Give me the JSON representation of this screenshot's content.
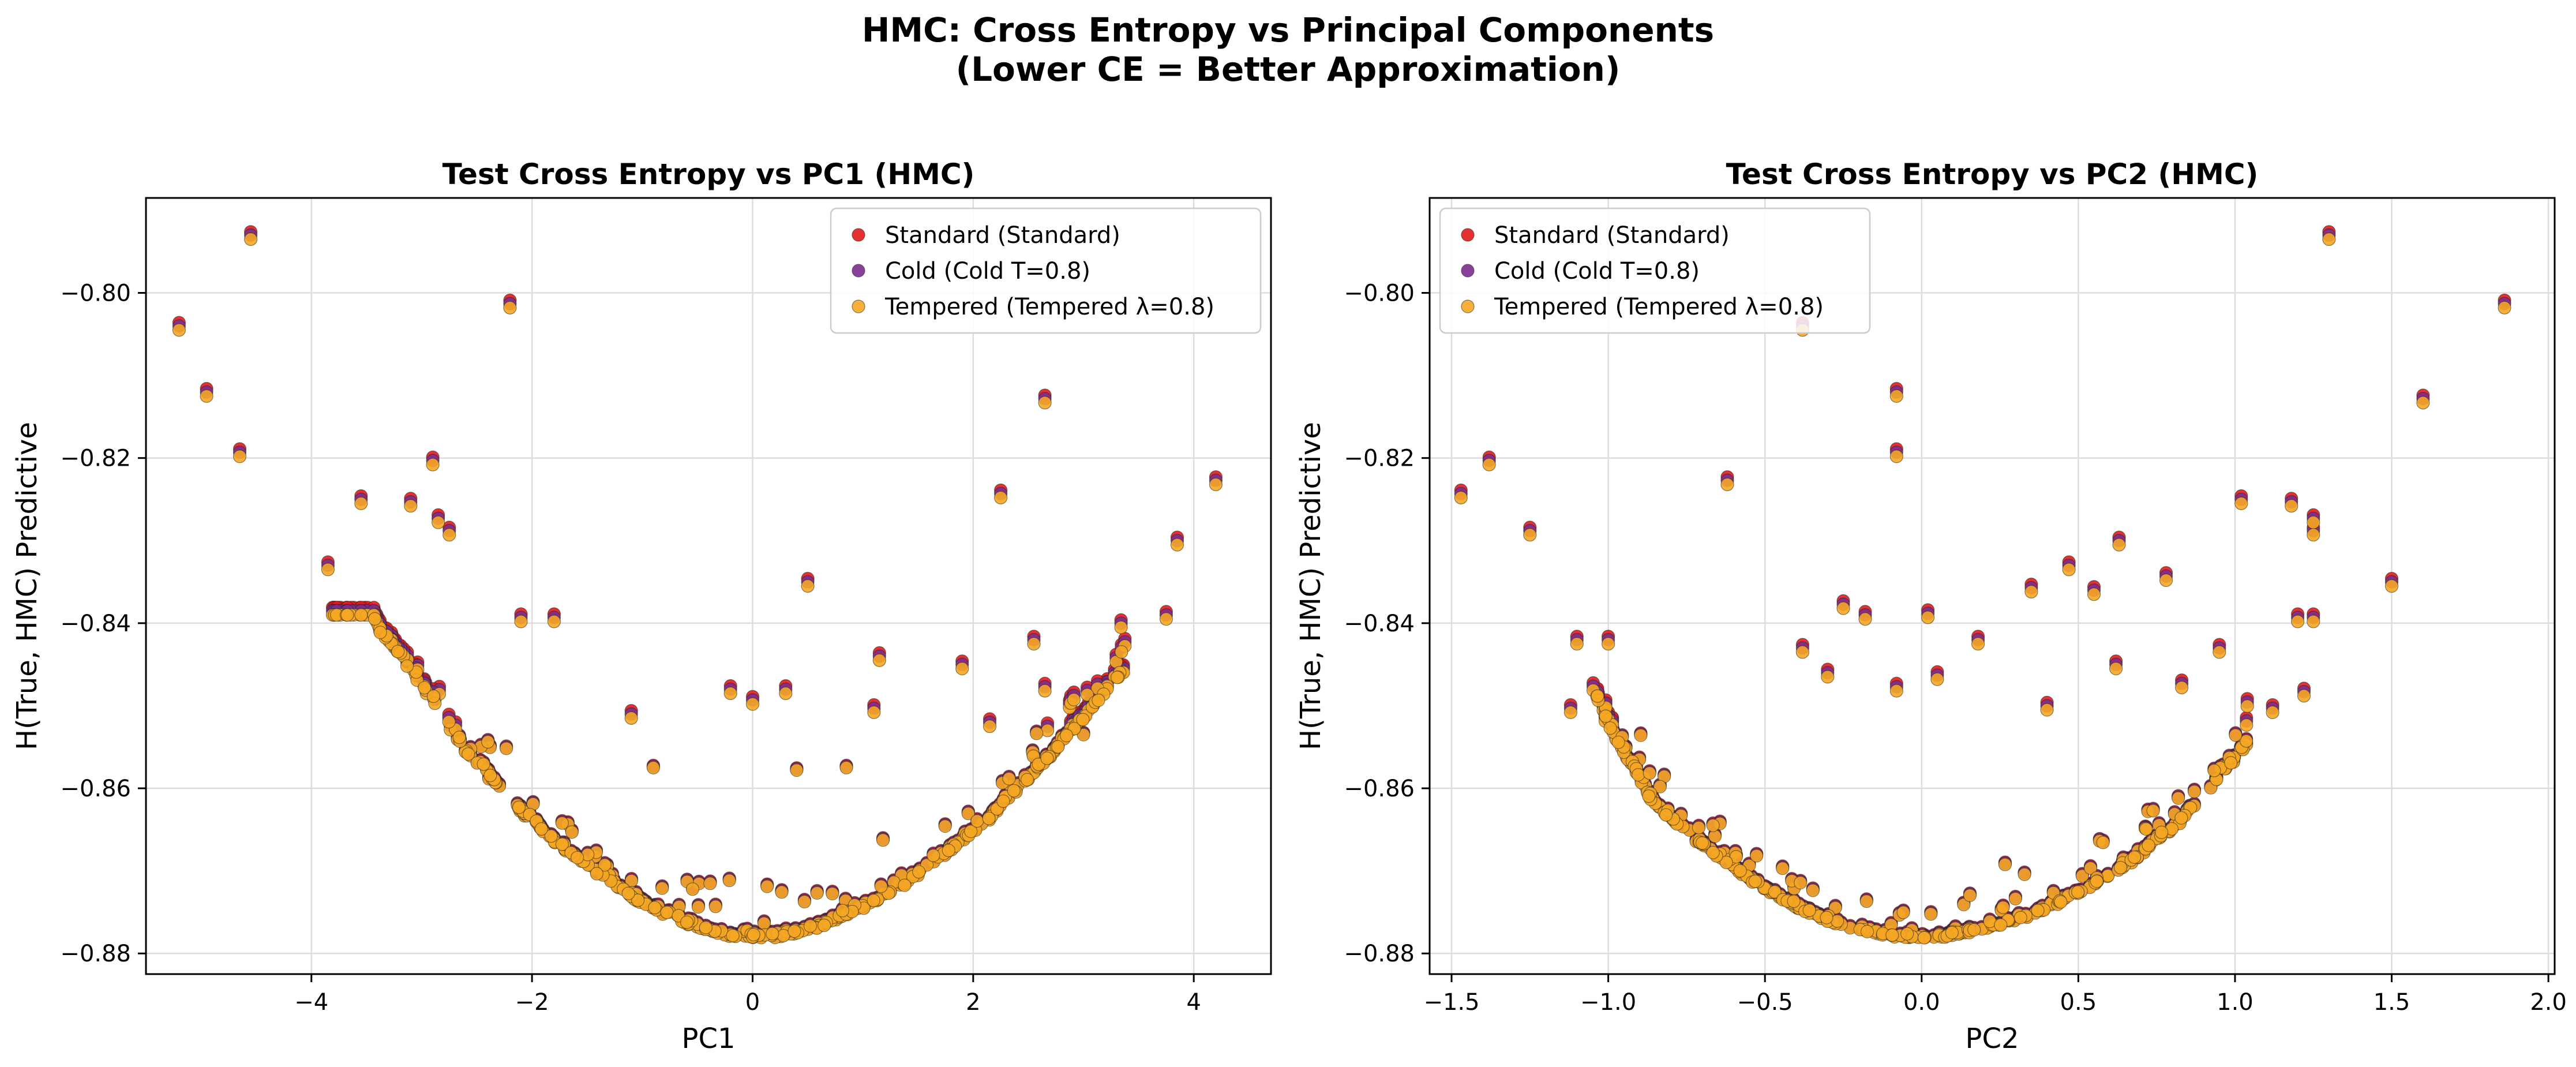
{
  "figure": {
    "title_line1": "HMC: Cross Entropy vs Principal Components",
    "title_line2": "(Lower CE = Better Approximation)"
  },
  "colors": {
    "standard": "#e41a1c",
    "cold": "#7b2d8e",
    "tempered": "#f5a623",
    "edge": "#222222",
    "grid": "#dddddd"
  },
  "chart_data": [
    {
      "type": "scatter",
      "title": "Test Cross Entropy vs PC1 (HMC)",
      "xlabel": "PC1",
      "ylabel": "H(True, HMC) Predictive",
      "xlim": [
        -5.5,
        4.7
      ],
      "ylim": [
        -0.8825,
        -0.7885
      ],
      "xticks": [
        -4,
        -2,
        0,
        2,
        4
      ],
      "yticks": [
        -0.88,
        -0.86,
        -0.84,
        -0.82,
        -0.8
      ],
      "grid": true,
      "legend_position": "top-right",
      "series": [
        {
          "name": "Standard (Standard)",
          "color": "#e41a1c"
        },
        {
          "name": "Cold (Cold T=0.8)",
          "color": "#7b2d8e"
        },
        {
          "name": "Tempered (Tempered λ=0.8)",
          "color": "#f5a623"
        }
      ],
      "points": [
        [
          -5.2,
          -0.8045
        ],
        [
          -4.95,
          -0.8125
        ],
        [
          -4.65,
          -0.8198
        ],
        [
          -4.55,
          -0.7935
        ],
        [
          -3.85,
          -0.8335
        ],
        [
          -3.55,
          -0.8255
        ],
        [
          -3.1,
          -0.8258
        ],
        [
          -2.9,
          -0.8208
        ],
        [
          -2.85,
          -0.8278
        ],
        [
          -2.75,
          -0.8293
        ],
        [
          -2.2,
          -0.8018
        ],
        [
          -2.1,
          -0.8398
        ],
        [
          -1.8,
          -0.8398
        ],
        [
          0.5,
          -0.8355
        ],
        [
          2.25,
          -0.8248
        ],
        [
          2.65,
          -0.8133
        ],
        [
          4.2,
          -0.8232
        ],
        [
          3.85,
          -0.8305
        ],
        [
          3.75,
          -0.8395
        ],
        [
          -0.2,
          -0.8485
        ],
        [
          0,
          -0.8498
        ],
        [
          0.3,
          -0.8485
        ],
        [
          -1.1,
          -0.8515
        ],
        [
          -0.9,
          -0.8575
        ],
        [
          1.15,
          -0.8445
        ],
        [
          1.9,
          -0.8455
        ],
        [
          2.15,
          -0.8525
        ],
        [
          2.55,
          -0.8425
        ],
        [
          2.65,
          -0.8482
        ],
        [
          3.0,
          -0.8535
        ],
        [
          0.85,
          -0.8575
        ],
        [
          1.1,
          -0.8508
        ],
        [
          0.4,
          -0.8578
        ]
      ],
      "curve": {
        "points": [
          [
            -3.8,
            -0.8335
          ],
          [
            -3.4,
            -0.8405
          ],
          [
            -3.0,
            -0.8475
          ],
          [
            -2.6,
            -0.8555
          ],
          [
            -2.2,
            -0.8615
          ],
          [
            -1.8,
            -0.8665
          ],
          [
            -1.4,
            -0.8705
          ],
          [
            -1.0,
            -0.874
          ],
          [
            -0.6,
            -0.8765
          ],
          [
            -0.2,
            -0.878
          ],
          [
            0.2,
            -0.8782
          ],
          [
            0.6,
            -0.8768
          ],
          [
            1.0,
            -0.8745
          ],
          [
            1.4,
            -0.8715
          ],
          [
            1.8,
            -0.8675
          ],
          [
            2.2,
            -0.863
          ],
          [
            2.6,
            -0.8575
          ],
          [
            3.0,
            -0.8515
          ],
          [
            3.4,
            -0.8455
          ]
        ],
        "count": 420
      }
    },
    {
      "type": "scatter",
      "title": "Test Cross Entropy vs PC2 (HMC)",
      "xlabel": "PC2",
      "ylabel": "H(True, HMC) Predictive",
      "xlim": [
        -1.57,
        2.02
      ],
      "ylim": [
        -0.8825,
        -0.7885
      ],
      "xticks": [
        -1.5,
        -1.0,
        -0.5,
        0.0,
        0.5,
        1.0,
        1.5,
        2.0
      ],
      "yticks": [
        -0.88,
        -0.86,
        -0.84,
        -0.82,
        -0.8
      ],
      "grid": true,
      "legend_position": "top-left",
      "series": [
        {
          "name": "Standard (Standard)",
          "color": "#e41a1c"
        },
        {
          "name": "Cold (Cold T=0.8)",
          "color": "#7b2d8e"
        },
        {
          "name": "Tempered (Tempered λ=0.8)",
          "color": "#f5a623"
        }
      ],
      "points": [
        [
          -1.47,
          -0.8248
        ],
        [
          -1.38,
          -0.8208
        ],
        [
          -1.25,
          -0.8293
        ],
        [
          -1.1,
          -0.8425
        ],
        [
          -1.12,
          -0.8508
        ],
        [
          -1.0,
          -0.8425
        ],
        [
          -0.62,
          -0.8232
        ],
        [
          -0.38,
          -0.8045
        ],
        [
          -0.08,
          -0.8125
        ],
        [
          -0.08,
          -0.8198
        ],
        [
          1.3,
          -0.7935
        ],
        [
          1.86,
          -0.8018
        ],
        [
          1.6,
          -0.8133
        ],
        [
          1.02,
          -0.8255
        ],
        [
          1.18,
          -0.8258
        ],
        [
          1.25,
          -0.8278
        ],
        [
          1.25,
          -0.8293
        ],
        [
          1.5,
          -0.8355
        ],
        [
          1.2,
          -0.8398
        ],
        [
          1.25,
          -0.8398
        ],
        [
          0.78,
          -0.8348
        ],
        [
          0.63,
          -0.8305
        ],
        [
          0.47,
          -0.8335
        ],
        [
          0.35,
          -0.8362
        ],
        [
          0.55,
          -0.8365
        ],
        [
          0.02,
          -0.8393
        ],
        [
          -0.18,
          -0.8395
        ],
        [
          -0.25,
          -0.8382
        ],
        [
          0.18,
          -0.8425
        ],
        [
          -0.38,
          -0.8435
        ],
        [
          0.05,
          -0.8468
        ],
        [
          -0.3,
          -0.8465
        ],
        [
          -0.08,
          -0.8482
        ],
        [
          0.95,
          -0.8435
        ],
        [
          1.22,
          -0.8488
        ],
        [
          1.12,
          -0.8508
        ],
        [
          0.83,
          -0.8478
        ],
        [
          0.4,
          -0.8505
        ],
        [
          0.62,
          -0.8455
        ]
      ],
      "curve": {
        "points": [
          [
            -1.05,
            -0.848
          ],
          [
            -0.95,
            -0.856
          ],
          [
            -0.85,
            -0.862
          ],
          [
            -0.7,
            -0.867
          ],
          [
            -0.55,
            -0.871
          ],
          [
            -0.4,
            -0.8745
          ],
          [
            -0.25,
            -0.8768
          ],
          [
            -0.1,
            -0.878
          ],
          [
            0.05,
            -0.8782
          ],
          [
            0.2,
            -0.8772
          ],
          [
            0.35,
            -0.8755
          ],
          [
            0.5,
            -0.8728
          ],
          [
            0.65,
            -0.8695
          ],
          [
            0.8,
            -0.865
          ],
          [
            0.95,
            -0.859
          ],
          [
            1.05,
            -0.854
          ]
        ],
        "count": 360
      }
    }
  ]
}
